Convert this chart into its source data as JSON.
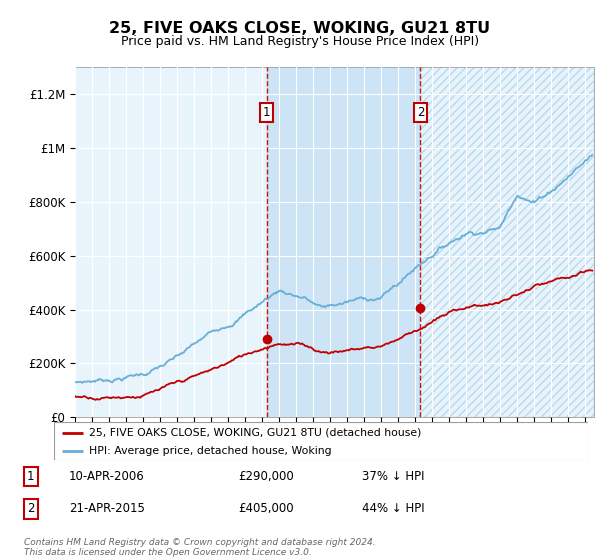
{
  "title": "25, FIVE OAKS CLOSE, WOKING, GU21 8TU",
  "subtitle": "Price paid vs. HM Land Registry's House Price Index (HPI)",
  "hpi_color": "#6aaed6",
  "price_color": "#c00000",
  "annotation_color": "#c00000",
  "bg_whole_color": "#e8f4fb",
  "bg_shade_color": "#cce4f5",
  "hatch_color": "#b8d9ee",
  "ylim": [
    0,
    1300000
  ],
  "yticks": [
    0,
    200000,
    400000,
    600000,
    800000,
    1000000,
    1200000
  ],
  "ytick_labels": [
    "£0",
    "£200K",
    "£400K",
    "£600K",
    "£800K",
    "£1M",
    "£1.2M"
  ],
  "purchase1_year": 2006.27,
  "purchase1_price": 290000,
  "purchase1_label": "1",
  "purchase2_year": 2015.3,
  "purchase2_price": 405000,
  "purchase2_label": "2",
  "legend_line1": "25, FIVE OAKS CLOSE, WOKING, GU21 8TU (detached house)",
  "legend_line2": "HPI: Average price, detached house, Woking",
  "table_row1": [
    "1",
    "10-APR-2006",
    "£290,000",
    "37% ↓ HPI"
  ],
  "table_row2": [
    "2",
    "21-APR-2015",
    "£405,000",
    "44% ↓ HPI"
  ],
  "footnote": "Contains HM Land Registry data © Crown copyright and database right 2024.\nThis data is licensed under the Open Government Licence v3.0.",
  "xstart": 1995.0,
  "xend": 2025.5
}
